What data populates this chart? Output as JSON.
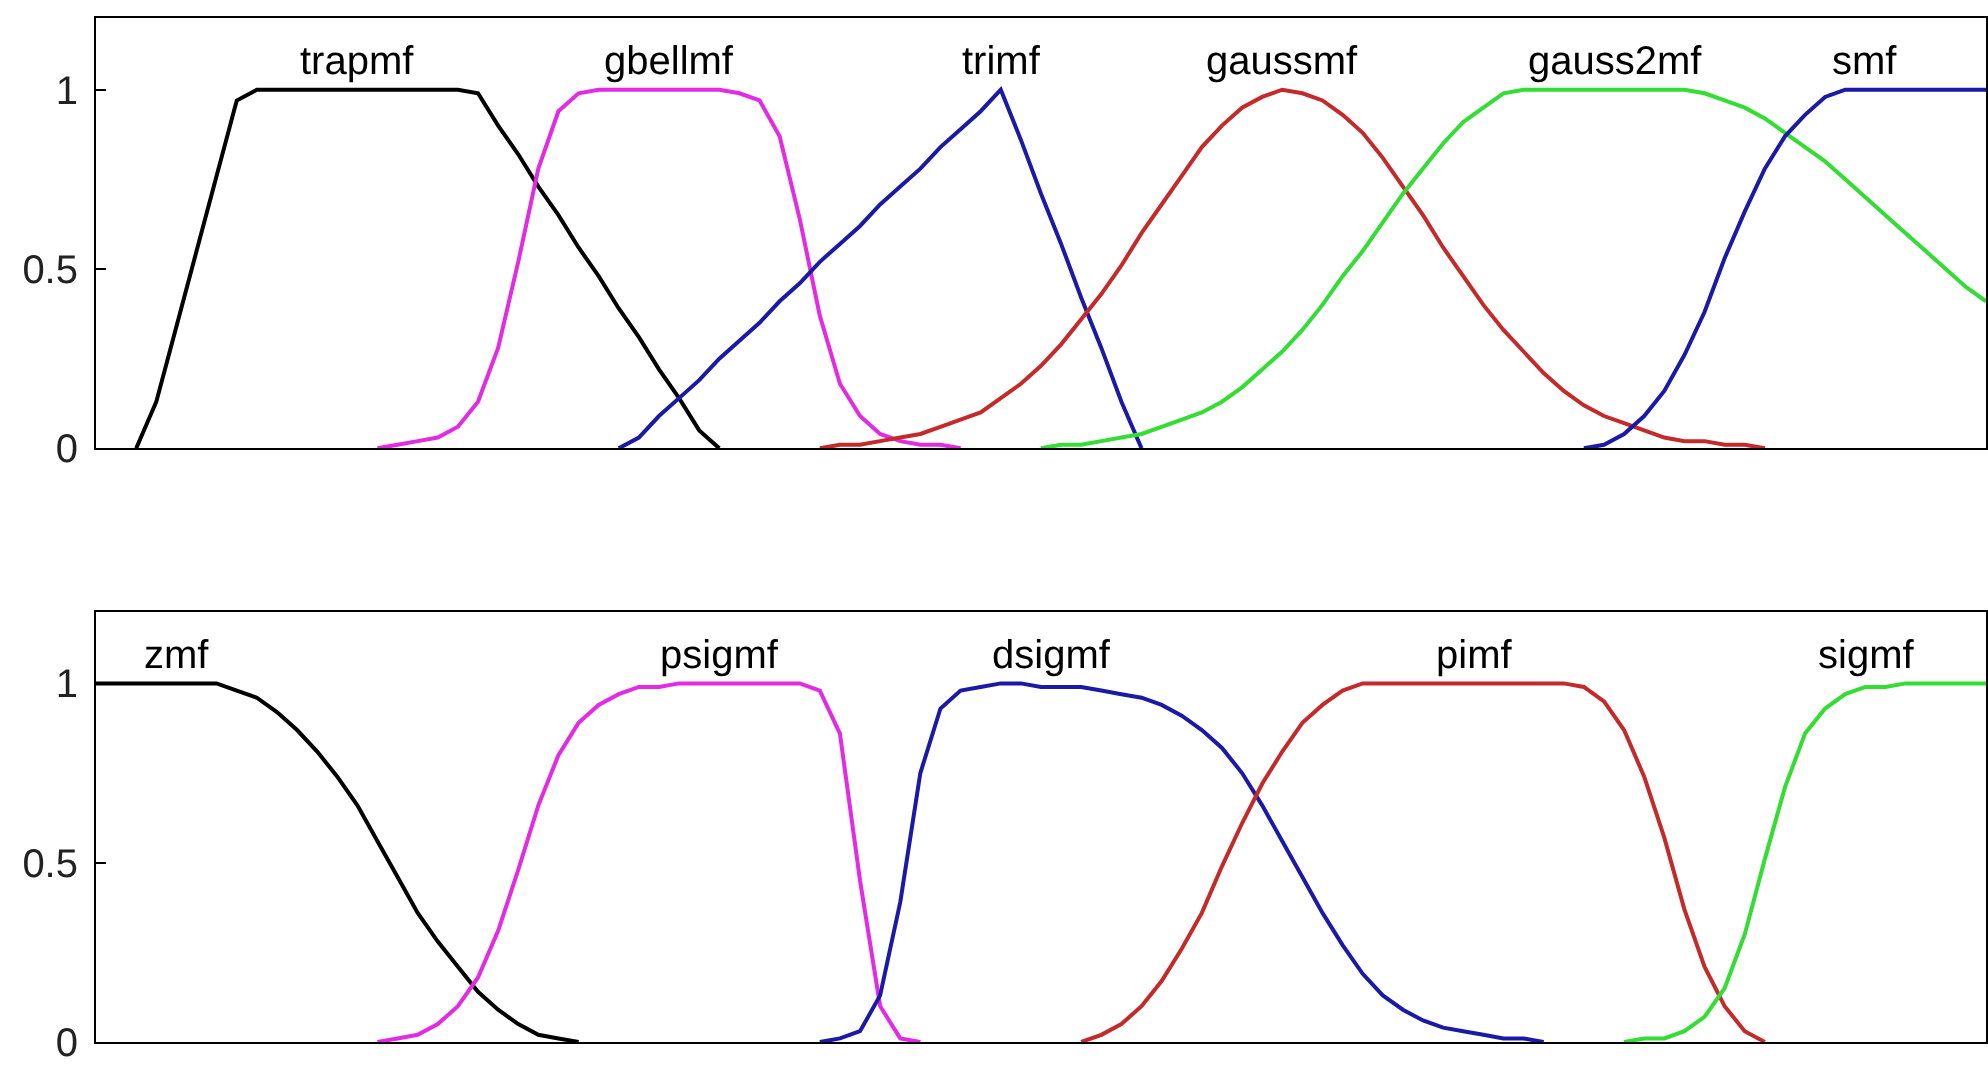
{
  "chart_data": [
    {
      "type": "line",
      "tick_labels": "y",
      "ylim": [
        0,
        1.2
      ],
      "yticks": [
        0,
        0.5,
        1
      ],
      "categories": [
        null,
        null,
        null,
        null,
        null,
        null,
        null,
        null,
        null,
        null,
        null,
        null,
        null,
        null,
        null,
        null,
        null,
        null,
        null,
        null,
        null,
        null,
        null,
        null,
        null,
        null,
        null,
        null,
        null,
        null,
        null,
        null,
        null,
        null,
        null,
        null,
        null,
        null,
        null,
        null,
        null,
        null,
        null,
        null,
        null,
        null,
        null,
        null,
        null,
        null,
        null,
        null,
        null,
        null,
        null,
        null,
        null,
        null,
        null,
        null,
        null,
        null,
        null,
        null,
        null,
        null,
        null,
        null,
        null,
        null,
        null,
        null,
        null,
        null,
        null,
        null,
        null,
        null,
        null,
        null,
        null,
        null,
        null,
        null,
        null,
        null,
        null,
        null,
        null,
        null,
        null,
        null,
        null,
        null,
        null
      ],
      "series": [
        {
          "name": "trapmf",
          "color": "#000000",
          "values": [
            null,
            null,
            0,
            0.13,
            0.34,
            0.55,
            0.76,
            0.97,
            1,
            1,
            1,
            1,
            1,
            1,
            1,
            1,
            1,
            1,
            1,
            0.99,
            0.9,
            0.82,
            0.73,
            0.65,
            0.56,
            0.48,
            0.39,
            0.31,
            0.22,
            0.14,
            0.05,
            0,
            null,
            null,
            null,
            null,
            null,
            null,
            null,
            null,
            null,
            null,
            null,
            null,
            null,
            null,
            null,
            null,
            null,
            null,
            null,
            null,
            null,
            null,
            null,
            null,
            null,
            null,
            null,
            null,
            null,
            null,
            null,
            null,
            null,
            null,
            null,
            null,
            null,
            null,
            null,
            null,
            null,
            null,
            null,
            null,
            null,
            null,
            null,
            null,
            null,
            null,
            null,
            null,
            null,
            null,
            null,
            null,
            null,
            null,
            null,
            null,
            null,
            null,
            null
          ]
        },
        {
          "name": "gbellmf",
          "color": "#e22be2",
          "values": [
            null,
            null,
            null,
            null,
            null,
            null,
            null,
            null,
            null,
            null,
            null,
            null,
            null,
            null,
            0,
            0.01,
            0.02,
            0.03,
            0.06,
            0.13,
            0.28,
            0.52,
            0.78,
            0.94,
            0.99,
            1,
            1,
            1,
            1,
            1,
            1,
            1,
            0.99,
            0.97,
            0.87,
            0.64,
            0.37,
            0.18,
            0.09,
            0.04,
            0.02,
            0.01,
            0.01,
            0,
            null,
            null,
            null,
            null,
            null,
            null,
            null,
            null,
            null,
            null,
            null,
            null,
            null,
            null,
            null,
            null,
            null,
            null,
            null,
            null,
            null,
            null,
            null,
            null,
            null,
            null,
            null,
            null,
            null,
            null,
            null,
            null,
            null,
            null,
            null,
            null,
            null,
            null,
            null,
            null,
            null,
            null,
            null,
            null,
            null,
            null,
            null,
            null,
            null,
            null,
            null
          ]
        },
        {
          "name": "trimf",
          "color": "#1a1aa6",
          "values": [
            null,
            null,
            null,
            null,
            null,
            null,
            null,
            null,
            null,
            null,
            null,
            null,
            null,
            null,
            null,
            null,
            null,
            null,
            null,
            null,
            null,
            null,
            null,
            null,
            null,
            null,
            0,
            0.03,
            0.09,
            0.14,
            0.19,
            0.25,
            0.3,
            0.35,
            0.41,
            0.46,
            0.52,
            0.57,
            0.62,
            0.68,
            0.73,
            0.78,
            0.84,
            0.89,
            0.94,
            1,
            0.86,
            0.71,
            0.57,
            0.42,
            0.28,
            0.13,
            0,
            null,
            null,
            null,
            null,
            null,
            null,
            null,
            null,
            null,
            null,
            null,
            null,
            null,
            null,
            null,
            null,
            null,
            null,
            null,
            null,
            null,
            null,
            null,
            null,
            null,
            null,
            null,
            null,
            null,
            null,
            null,
            null,
            null,
            null,
            null,
            null,
            null,
            null,
            null,
            null,
            null,
            null
          ]
        },
        {
          "name": "gaussmf",
          "color": "#c42a2a",
          "values": [
            null,
            null,
            null,
            null,
            null,
            null,
            null,
            null,
            null,
            null,
            null,
            null,
            null,
            null,
            null,
            null,
            null,
            null,
            null,
            null,
            null,
            null,
            null,
            null,
            null,
            null,
            null,
            null,
            null,
            null,
            null,
            null,
            null,
            null,
            null,
            null,
            0,
            0.01,
            0.01,
            0.02,
            0.03,
            0.04,
            0.06,
            0.08,
            0.1,
            0.14,
            0.18,
            0.23,
            0.29,
            0.36,
            0.43,
            0.51,
            0.6,
            0.68,
            0.76,
            0.84,
            0.9,
            0.95,
            0.98,
            1,
            0.99,
            0.97,
            0.93,
            0.88,
            0.81,
            0.73,
            0.65,
            0.56,
            0.48,
            0.4,
            0.33,
            0.27,
            0.21,
            0.16,
            0.12,
            0.09,
            0.07,
            0.05,
            0.03,
            0.02,
            0.02,
            0.01,
            0.01,
            0,
            null,
            null,
            null,
            null,
            null,
            null,
            null,
            null,
            null,
            null,
            null
          ]
        },
        {
          "name": "gauss2mf",
          "color": "#33dd33",
          "values": [
            null,
            null,
            null,
            null,
            null,
            null,
            null,
            null,
            null,
            null,
            null,
            null,
            null,
            null,
            null,
            null,
            null,
            null,
            null,
            null,
            null,
            null,
            null,
            null,
            null,
            null,
            null,
            null,
            null,
            null,
            null,
            null,
            null,
            null,
            null,
            null,
            null,
            null,
            null,
            null,
            null,
            null,
            null,
            null,
            null,
            null,
            null,
            0,
            0.01,
            0.01,
            0.02,
            0.03,
            0.04,
            0.06,
            0.08,
            0.1,
            0.13,
            0.17,
            0.22,
            0.27,
            0.33,
            0.4,
            0.48,
            0.55,
            0.63,
            0.71,
            0.78,
            0.85,
            0.91,
            0.95,
            0.99,
            1,
            1,
            1,
            1,
            1,
            1,
            1,
            1,
            1,
            0.99,
            0.97,
            0.95,
            0.92,
            0.88,
            0.84,
            0.8,
            0.75,
            0.7,
            0.65,
            0.6,
            0.55,
            0.5,
            0.45,
            0.41
          ]
        },
        {
          "name": "smf",
          "color": "#1a1aa6",
          "values": [
            null,
            null,
            null,
            null,
            null,
            null,
            null,
            null,
            null,
            null,
            null,
            null,
            null,
            null,
            null,
            null,
            null,
            null,
            null,
            null,
            null,
            null,
            null,
            null,
            null,
            null,
            null,
            null,
            null,
            null,
            null,
            null,
            null,
            null,
            null,
            null,
            null,
            null,
            null,
            null,
            null,
            null,
            null,
            null,
            null,
            null,
            null,
            null,
            null,
            null,
            null,
            null,
            null,
            null,
            null,
            null,
            null,
            null,
            null,
            null,
            null,
            null,
            null,
            null,
            null,
            null,
            null,
            null,
            null,
            null,
            null,
            null,
            null,
            null,
            0,
            0.01,
            0.04,
            0.09,
            0.16,
            0.26,
            0.38,
            0.53,
            0.66,
            0.78,
            0.87,
            0.93,
            0.98,
            1,
            1,
            1,
            1,
            1,
            1,
            1,
            1
          ]
        }
      ]
    },
    {
      "type": "line",
      "tick_labels": "y",
      "ylim": [
        0,
        1.2
      ],
      "yticks": [
        0,
        0.5,
        1
      ],
      "categories": [
        null,
        null,
        null,
        null,
        null,
        null,
        null,
        null,
        null,
        null,
        null,
        null,
        null,
        null,
        null,
        null,
        null,
        null,
        null,
        null,
        null,
        null,
        null,
        null,
        null,
        null,
        null,
        null,
        null,
        null,
        null,
        null,
        null,
        null,
        null,
        null,
        null,
        null,
        null,
        null,
        null,
        null,
        null,
        null,
        null,
        null,
        null,
        null,
        null,
        null,
        null,
        null,
        null,
        null,
        null,
        null,
        null,
        null,
        null,
        null,
        null,
        null,
        null,
        null,
        null,
        null,
        null,
        null,
        null,
        null,
        null,
        null,
        null,
        null,
        null,
        null,
        null,
        null,
        null,
        null,
        null,
        null,
        null,
        null,
        null,
        null,
        null,
        null,
        null,
        null,
        null,
        null,
        null,
        null,
        null
      ],
      "series": [
        {
          "name": "zmf",
          "color": "#000000",
          "values": [
            1,
            1,
            1,
            1,
            1,
            1,
            1,
            0.98,
            0.96,
            0.92,
            0.87,
            0.81,
            0.74,
            0.66,
            0.56,
            0.46,
            0.36,
            0.28,
            0.21,
            0.14,
            0.09,
            0.05,
            0.02,
            0.01,
            0,
            null,
            null,
            null,
            null,
            null,
            null,
            null,
            null,
            null,
            null,
            null,
            null,
            null,
            null,
            null,
            null,
            null,
            null,
            null,
            null,
            null,
            null,
            null,
            null,
            null,
            null,
            null,
            null,
            null,
            null,
            null,
            null,
            null,
            null,
            null,
            null,
            null,
            null,
            null,
            null,
            null,
            null,
            null,
            null,
            null,
            null,
            null,
            null,
            null,
            null,
            null,
            null,
            null,
            null,
            null,
            null,
            null,
            null,
            null,
            null,
            null,
            null,
            null,
            null,
            null,
            null,
            null,
            null,
            null,
            null
          ]
        },
        {
          "name": "psigmf",
          "color": "#e22be2",
          "values": [
            null,
            null,
            null,
            null,
            null,
            null,
            null,
            null,
            null,
            null,
            null,
            null,
            null,
            null,
            0,
            0.01,
            0.02,
            0.05,
            0.1,
            0.18,
            0.31,
            0.48,
            0.66,
            0.8,
            0.89,
            0.94,
            0.97,
            0.99,
            0.99,
            1,
            1,
            1,
            1,
            1,
            1,
            1,
            0.98,
            0.86,
            0.45,
            0.1,
            0.01,
            0,
            null,
            null,
            null,
            null,
            null,
            null,
            null,
            null,
            null,
            null,
            null,
            null,
            null,
            null,
            null,
            null,
            null,
            null,
            null,
            null,
            null,
            null,
            null,
            null,
            null,
            null,
            null,
            null,
            null,
            null,
            null,
            null,
            null,
            null,
            null,
            null,
            null,
            null,
            null,
            null,
            null,
            null,
            null,
            null,
            null,
            null,
            null,
            null,
            null,
            null,
            null,
            null,
            null
          ]
        },
        {
          "name": "dsigmf",
          "color": "#1a1aa6",
          "values": [
            null,
            null,
            null,
            null,
            null,
            null,
            null,
            null,
            null,
            null,
            null,
            null,
            null,
            null,
            null,
            null,
            null,
            null,
            null,
            null,
            null,
            null,
            null,
            null,
            null,
            null,
            null,
            null,
            null,
            null,
            null,
            null,
            null,
            null,
            null,
            null,
            0,
            0.01,
            0.03,
            0.13,
            0.39,
            0.75,
            0.93,
            0.98,
            0.99,
            1,
            1,
            0.99,
            0.99,
            0.99,
            0.98,
            0.97,
            0.96,
            0.94,
            0.91,
            0.87,
            0.82,
            0.75,
            0.66,
            0.56,
            0.46,
            0.36,
            0.27,
            0.19,
            0.13,
            0.09,
            0.06,
            0.04,
            0.03,
            0.02,
            0.01,
            0.01,
            0,
            null,
            null,
            null,
            null,
            null,
            null,
            null,
            null,
            null,
            null,
            null,
            null,
            null,
            null,
            null,
            null,
            null,
            null,
            null,
            null,
            null,
            null
          ]
        },
        {
          "name": "pimf",
          "color": "#c42a2a",
          "values": [
            null,
            null,
            null,
            null,
            null,
            null,
            null,
            null,
            null,
            null,
            null,
            null,
            null,
            null,
            null,
            null,
            null,
            null,
            null,
            null,
            null,
            null,
            null,
            null,
            null,
            null,
            null,
            null,
            null,
            null,
            null,
            null,
            null,
            null,
            null,
            null,
            null,
            null,
            null,
            null,
            null,
            null,
            null,
            null,
            null,
            null,
            null,
            null,
            null,
            0,
            0.02,
            0.05,
            0.1,
            0.17,
            0.26,
            0.36,
            0.49,
            0.61,
            0.72,
            0.81,
            0.89,
            0.94,
            0.98,
            1,
            1,
            1,
            1,
            1,
            1,
            1,
            1,
            1,
            1,
            1,
            0.99,
            0.95,
            0.87,
            0.74,
            0.57,
            0.37,
            0.21,
            0.1,
            0.03,
            0,
            null,
            null,
            null,
            null,
            null,
            null,
            null,
            null,
            null,
            null,
            null
          ]
        },
        {
          "name": "sigmf",
          "color": "#33dd33",
          "values": [
            null,
            null,
            null,
            null,
            null,
            null,
            null,
            null,
            null,
            null,
            null,
            null,
            null,
            null,
            null,
            null,
            null,
            null,
            null,
            null,
            null,
            null,
            null,
            null,
            null,
            null,
            null,
            null,
            null,
            null,
            null,
            null,
            null,
            null,
            null,
            null,
            null,
            null,
            null,
            null,
            null,
            null,
            null,
            null,
            null,
            null,
            null,
            null,
            null,
            null,
            null,
            null,
            null,
            null,
            null,
            null,
            null,
            null,
            null,
            null,
            null,
            null,
            null,
            null,
            null,
            null,
            null,
            null,
            null,
            null,
            null,
            null,
            null,
            null,
            null,
            null,
            0,
            0.01,
            0.01,
            0.03,
            0.07,
            0.15,
            0.3,
            0.51,
            0.71,
            0.86,
            0.93,
            0.97,
            0.99,
            0.99,
            1,
            1,
            1,
            1,
            1
          ]
        }
      ]
    }
  ]
}
